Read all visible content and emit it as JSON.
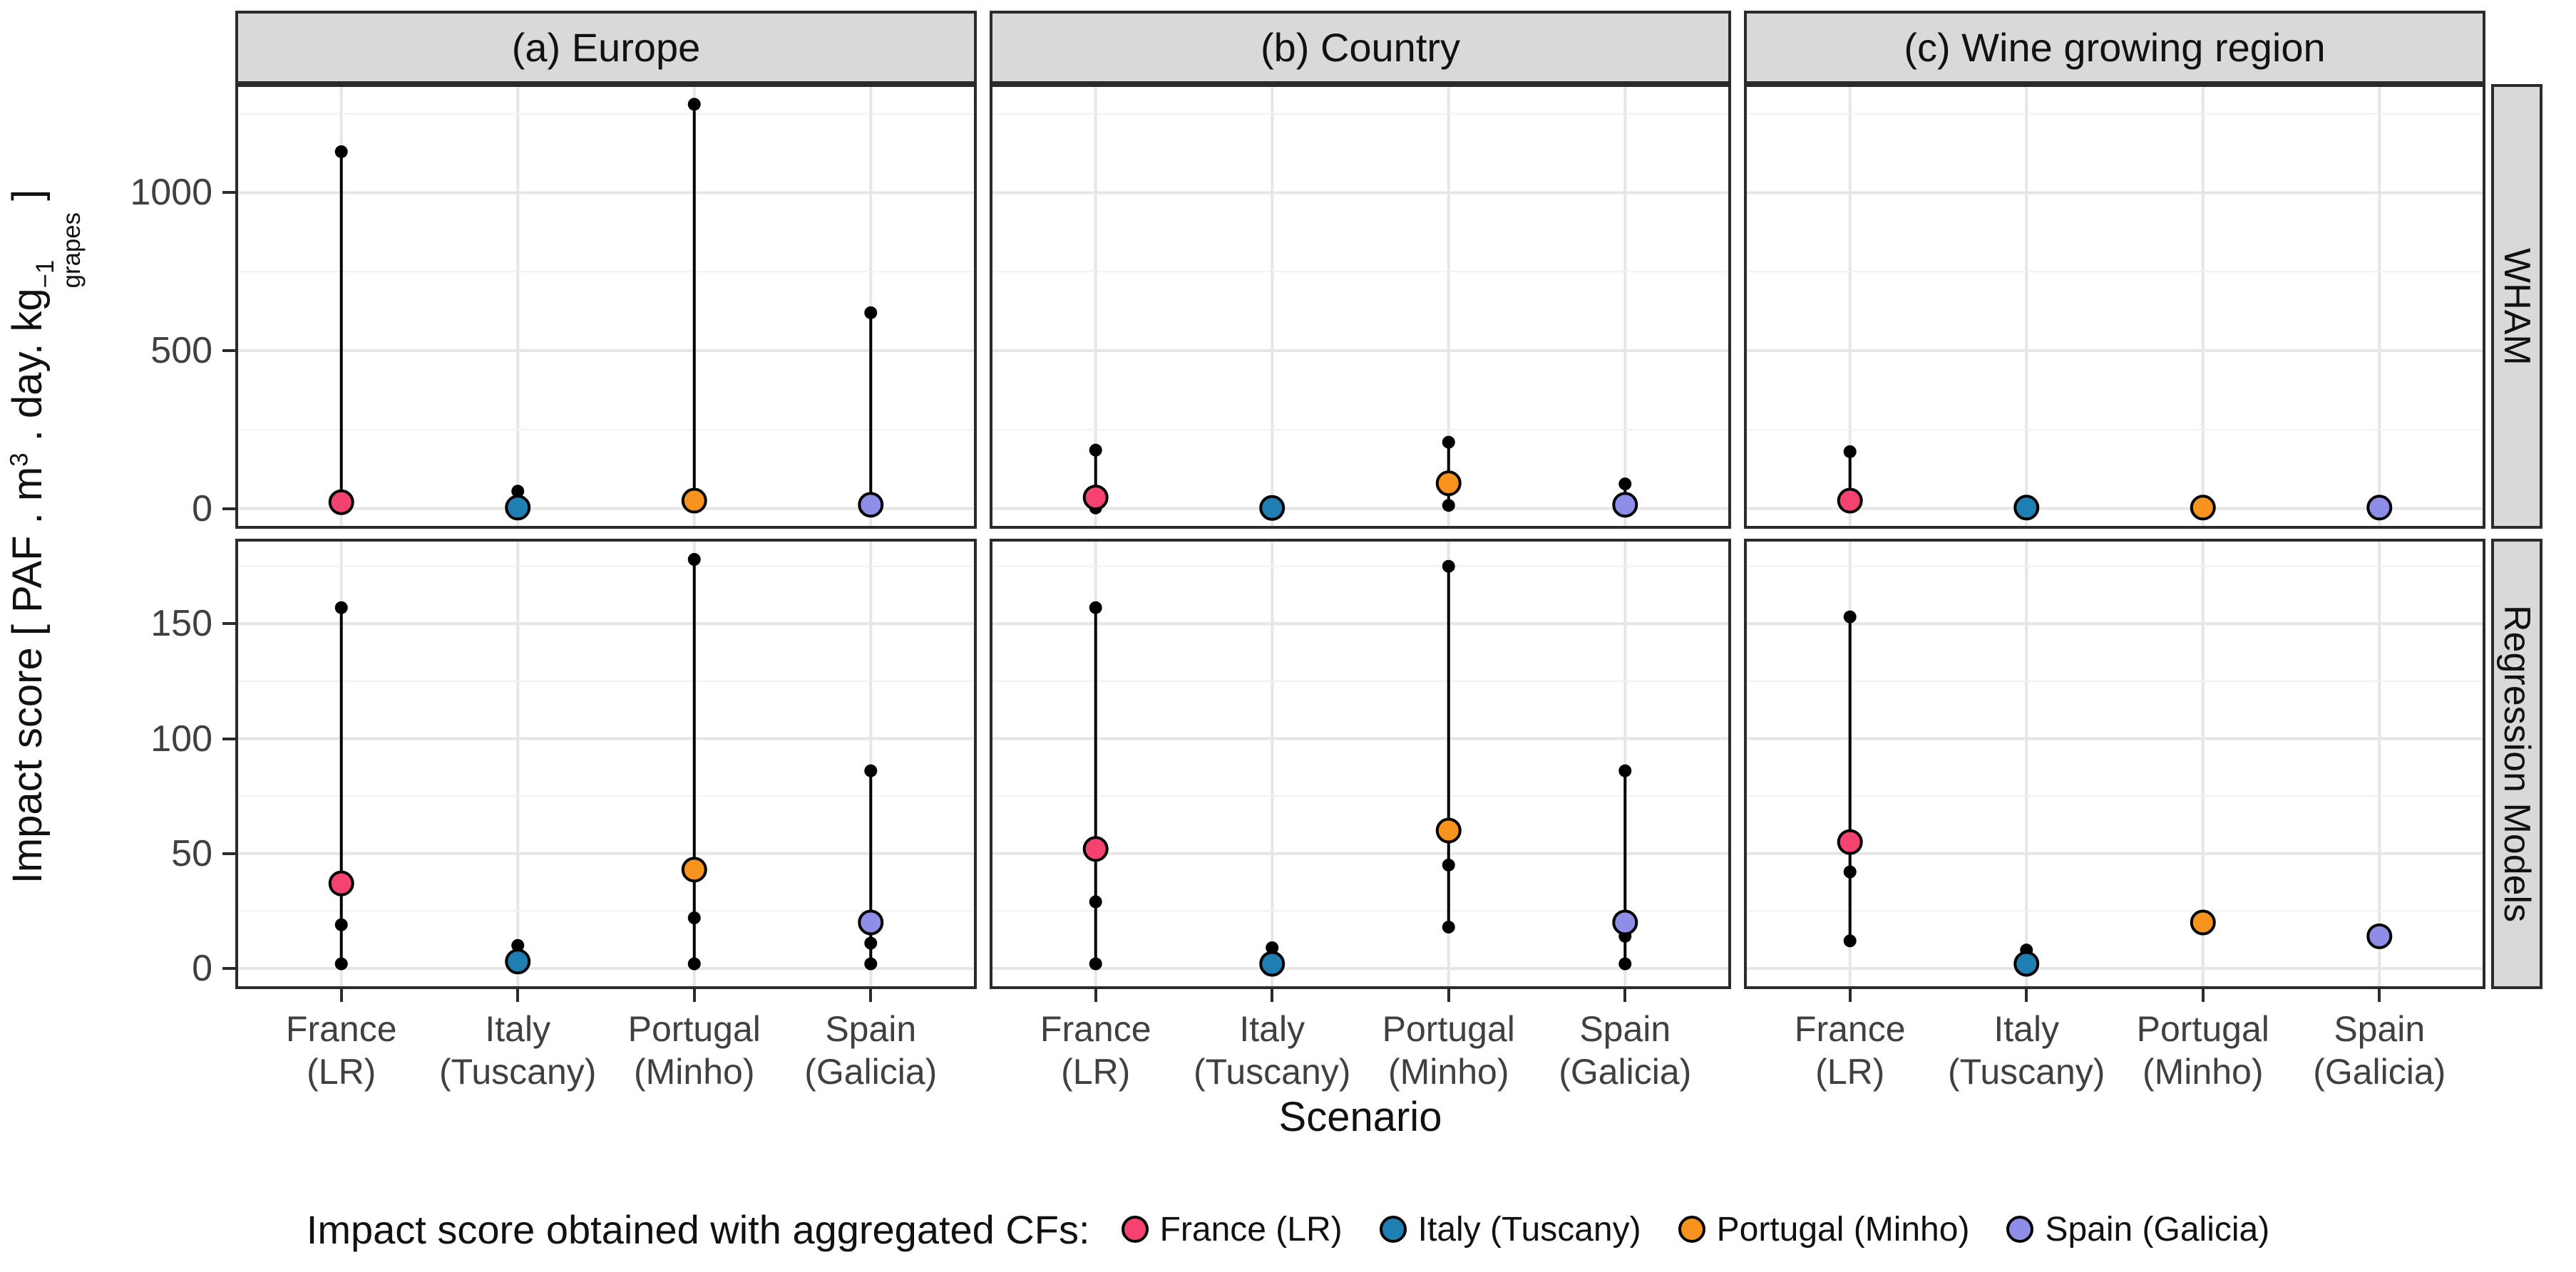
{
  "figure": {
    "y_axis_title": {
      "prefix": "Impact score [ PAF . m",
      "sup1": "3",
      "mid": " . day. kg",
      "sup2": "−1",
      "sub2": "grapes",
      "suffix": " ]"
    },
    "x_axis_title": "Scenario",
    "colors": {
      "france": "#F5426E",
      "italy": "#1F7EB2",
      "portugal": "#F8941D",
      "spain": "#8E8EE8",
      "strip_bg": "#D9D9D9",
      "grid_major": "#E6E6E6",
      "grid_minor": "#F1F1F1",
      "panel_border": "#2b2b2b",
      "point_black": "#000000"
    }
  },
  "legend": {
    "title": "Impact score obtained with aggregated CFs:",
    "items": [
      {
        "label": "France (LR)",
        "color": "#F5426E"
      },
      {
        "label": "Italy (Tuscany)",
        "color": "#1F7EB2"
      },
      {
        "label": "Portugal (Minho)",
        "color": "#F8941D"
      },
      {
        "label": "Spain (Galicia)",
        "color": "#8E8EE8"
      }
    ]
  },
  "chart_data": {
    "type": "scatter",
    "title": "",
    "xlabel": "Scenario",
    "ylabel": "Impact score [ PAF . m3 . day. kg-1 grapes ]",
    "facet_columns": [
      "(a) Europe",
      "(b) Country",
      "(c) Wine growing region"
    ],
    "facet_rows": [
      "WHAM",
      "Regression Models"
    ],
    "categories": [
      {
        "line1": "France",
        "line2": "(LR)"
      },
      {
        "line1": "Italy",
        "line2": "(Tuscany)"
      },
      {
        "line1": "Portugal",
        "line2": "(Minho)"
      },
      {
        "line1": "Spain",
        "line2": "(Galicia)"
      }
    ],
    "x_positions": [
      0.143,
      0.381,
      0.619,
      0.857
    ],
    "rows": [
      {
        "name": "WHAM",
        "ylim": [
          -64,
          1344
        ],
        "major_ticks": [
          0,
          500,
          1000
        ],
        "minor_ticks": [
          250,
          750,
          1250
        ],
        "tick_labels": [
          "0",
          "500",
          "1000"
        ]
      },
      {
        "name": "Regression Models",
        "ylim": [
          -9,
          187
        ],
        "major_ticks": [
          0,
          50,
          100,
          150
        ],
        "minor_ticks": [
          25,
          75,
          125,
          175
        ],
        "tick_labels": [
          "0",
          "50",
          "100",
          "150"
        ]
      }
    ],
    "panels": [
      {
        "row": "WHAM",
        "col": "(a) Europe",
        "groups": [
          {
            "category": "France (LR)",
            "color_key": "france",
            "aggregated": 20,
            "range": [
              20,
              1130
            ],
            "points": [
              1130
            ]
          },
          {
            "category": "Italy (Tuscany)",
            "color_key": "italy",
            "aggregated": 3,
            "range": [
              3,
              55
            ],
            "points": [
              55
            ]
          },
          {
            "category": "Portugal (Minho)",
            "color_key": "portugal",
            "aggregated": 25,
            "range": [
              25,
              1280
            ],
            "points": [
              1280
            ]
          },
          {
            "category": "Spain (Galicia)",
            "color_key": "spain",
            "aggregated": 12,
            "range": [
              12,
              620
            ],
            "points": [
              620
            ]
          }
        ]
      },
      {
        "row": "WHAM",
        "col": "(b) Country",
        "groups": [
          {
            "category": "France (LR)",
            "color_key": "france",
            "aggregated": 35,
            "range": [
              2,
              185
            ],
            "points": [
              185,
              2
            ]
          },
          {
            "category": "Italy (Tuscany)",
            "color_key": "italy",
            "aggregated": 2,
            "range": null,
            "points": []
          },
          {
            "category": "Portugal (Minho)",
            "color_key": "portugal",
            "aggregated": 80,
            "range": [
              10,
              210
            ],
            "points": [
              210,
              10
            ]
          },
          {
            "category": "Spain (Galicia)",
            "color_key": "spain",
            "aggregated": 12,
            "range": [
              12,
              78
            ],
            "points": [
              78
            ]
          }
        ]
      },
      {
        "row": "WHAM",
        "col": "(c) Wine growing region",
        "groups": [
          {
            "category": "France (LR)",
            "color_key": "france",
            "aggregated": 25,
            "range": [
              25,
              180
            ],
            "points": [
              180
            ]
          },
          {
            "category": "Italy (Tuscany)",
            "color_key": "italy",
            "aggregated": 3,
            "range": null,
            "points": []
          },
          {
            "category": "Portugal (Minho)",
            "color_key": "portugal",
            "aggregated": 3,
            "range": null,
            "points": []
          },
          {
            "category": "Spain (Galicia)",
            "color_key": "spain",
            "aggregated": 3,
            "range": null,
            "points": []
          }
        ]
      },
      {
        "row": "Regression Models",
        "col": "(a) Europe",
        "groups": [
          {
            "category": "France (LR)",
            "color_key": "france",
            "aggregated": 37,
            "range": [
              2,
              157
            ],
            "points": [
              157,
              19,
              2
            ]
          },
          {
            "category": "Italy (Tuscany)",
            "color_key": "italy",
            "aggregated": 3,
            "range": [
              3,
              10
            ],
            "points": [
              10
            ]
          },
          {
            "category": "Portugal (Minho)",
            "color_key": "portugal",
            "aggregated": 43,
            "range": [
              2,
              178
            ],
            "points": [
              178,
              22,
              2
            ]
          },
          {
            "category": "Spain (Galicia)",
            "color_key": "spain",
            "aggregated": 20,
            "range": [
              2,
              86
            ],
            "points": [
              86,
              11,
              2
            ]
          }
        ]
      },
      {
        "row": "Regression Models",
        "col": "(b) Country",
        "groups": [
          {
            "category": "France (LR)",
            "color_key": "france",
            "aggregated": 52,
            "range": [
              2,
              157
            ],
            "points": [
              157,
              29,
              2
            ]
          },
          {
            "category": "Italy (Tuscany)",
            "color_key": "italy",
            "aggregated": 2,
            "range": [
              2,
              9
            ],
            "points": [
              9
            ]
          },
          {
            "category": "Portugal (Minho)",
            "color_key": "portugal",
            "aggregated": 60,
            "range": [
              18,
              175
            ],
            "points": [
              175,
              45,
              18
            ]
          },
          {
            "category": "Spain (Galicia)",
            "color_key": "spain",
            "aggregated": 20,
            "range": [
              2,
              86
            ],
            "points": [
              86,
              14,
              2
            ]
          }
        ]
      },
      {
        "row": "Regression Models",
        "col": "(c) Wine growing region",
        "groups": [
          {
            "category": "France (LR)",
            "color_key": "france",
            "aggregated": 55,
            "range": [
              12,
              153
            ],
            "points": [
              153,
              42,
              12
            ]
          },
          {
            "category": "Italy (Tuscany)",
            "color_key": "italy",
            "aggregated": 2,
            "range": [
              2,
              8
            ],
            "points": [
              8
            ]
          },
          {
            "category": "Portugal (Minho)",
            "color_key": "portugal",
            "aggregated": 20,
            "range": null,
            "points": []
          },
          {
            "category": "Spain (Galicia)",
            "color_key": "spain",
            "aggregated": 14,
            "range": null,
            "points": []
          }
        ]
      }
    ],
    "legend_position": "bottom",
    "grid": true
  }
}
